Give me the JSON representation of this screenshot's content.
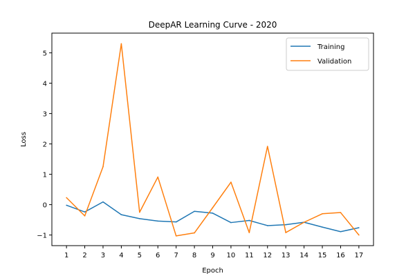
{
  "chart_data": {
    "type": "line",
    "title": "DeepAR Learning Curve - 2020",
    "xlabel": "Epoch",
    "ylabel": "Loss",
    "x": [
      1,
      2,
      3,
      4,
      5,
      6,
      7,
      8,
      9,
      10,
      11,
      12,
      13,
      14,
      15,
      16,
      17
    ],
    "xlim": [
      0.2,
      17.8
    ],
    "ylim": [
      -1.35,
      5.65
    ],
    "yticks": [
      -1,
      0,
      1,
      2,
      3,
      4,
      5
    ],
    "ytick_labels": [
      "−1",
      "0",
      "1",
      "2",
      "3",
      "4",
      "5"
    ],
    "xticks": [
      1,
      2,
      3,
      4,
      5,
      6,
      7,
      8,
      9,
      10,
      11,
      12,
      13,
      14,
      15,
      16,
      17
    ],
    "xtick_labels": [
      "1",
      "2",
      "3",
      "4",
      "5",
      "6",
      "7",
      "8",
      "9",
      "10",
      "11",
      "12",
      "13",
      "14",
      "15",
      "16",
      "17"
    ],
    "grid": false,
    "legend_position": "top-right",
    "series": [
      {
        "name": "Training",
        "color": "#1f77b4",
        "values": [
          -0.02,
          -0.24,
          0.09,
          -0.33,
          -0.46,
          -0.54,
          -0.57,
          -0.22,
          -0.28,
          -0.59,
          -0.52,
          -0.69,
          -0.66,
          -0.58,
          -0.74,
          -0.89,
          -0.76
        ]
      },
      {
        "name": "Validation",
        "color": "#ff7f0e",
        "values": [
          0.23,
          -0.37,
          1.25,
          5.3,
          -0.25,
          0.91,
          -1.03,
          -0.93,
          -0.1,
          0.74,
          -0.92,
          1.92,
          -0.92,
          -0.58,
          -0.3,
          -0.26,
          -1.0
        ]
      }
    ]
  }
}
